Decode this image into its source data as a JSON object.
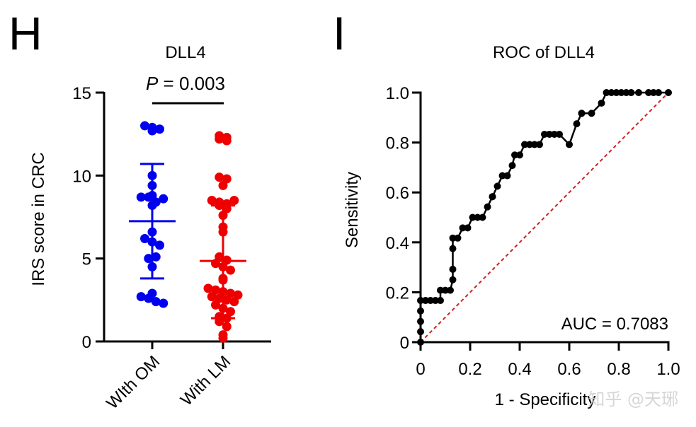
{
  "panels": {
    "left_letter": "H",
    "right_letter": "I"
  },
  "watermark": "知乎 @天琊",
  "chart_data": [
    {
      "type": "scatter",
      "subtype": "dot-plot-with-mean-sd",
      "title": "DLL4",
      "annotation": {
        "p_label": "P",
        "p_text": " = 0.003"
      },
      "xlabel": "",
      "ylabel": "IRS score in CRC",
      "ylim": [
        0,
        15
      ],
      "yticks": [
        "0",
        "5",
        "10",
        "15"
      ],
      "yticks_values": [
        0,
        5,
        10,
        15
      ],
      "categories": [
        "WIth OM",
        "With LM"
      ],
      "grid": false,
      "series": [
        {
          "name": "WIth OM",
          "color": "#0000ee",
          "mean": 7.25,
          "sd_upper": 10.7,
          "sd_lower": 3.8,
          "values": [
            13.0,
            12.7,
            12.9,
            12.8,
            10.0,
            9.4,
            8.8,
            8.7,
            8.7,
            8.4,
            8.6,
            8.2,
            6.6,
            6.2,
            6.0,
            5.8,
            5.0,
            5.1,
            4.5,
            2.9,
            2.7,
            2.6,
            2.4,
            2.3
          ]
        },
        {
          "name": "With LM",
          "color": "#ee0000",
          "mean": 4.85,
          "sd_upper": 8.2,
          "sd_lower": 1.4,
          "values": [
            12.4,
            12.2,
            12.1,
            12.3,
            9.9,
            9.8,
            9.4,
            8.5,
            8.4,
            8.3,
            8.5,
            8.2,
            8.0,
            7.6,
            6.9,
            6.6,
            5.1,
            4.9,
            4.7,
            4.5,
            4.3,
            3.8,
            3.7,
            3.2,
            3.1,
            3.0,
            2.9,
            2.8,
            2.7,
            2.6,
            2.5,
            2.4,
            2.2,
            2.0,
            1.8,
            1.5,
            1.4,
            1.2,
            0.9,
            0.4,
            0.2
          ]
        }
      ]
    },
    {
      "type": "line",
      "subtype": "roc",
      "title": "ROC of DLL4",
      "xlabel": "1 - Specificity",
      "ylabel": "Sensitivity",
      "xlim": [
        0,
        1
      ],
      "ylim": [
        0,
        1
      ],
      "xticks": [
        "0",
        "0.2",
        "0.4",
        "0.6",
        "0.8",
        "1.0"
      ],
      "xticks_values": [
        0,
        0.2,
        0.4,
        0.6,
        0.8,
        1.0
      ],
      "yticks": [
        "0",
        "0.2",
        "0.4",
        "0.6",
        "0.8",
        "1.0"
      ],
      "yticks_values": [
        0,
        0.2,
        0.4,
        0.6,
        0.8,
        1.0
      ],
      "annotation": "AUC = 0.7083",
      "auc": 0.7083,
      "grid": false,
      "line_color": "#000000",
      "reference_line": {
        "color": "#cc2222",
        "style": "dashed",
        "from": [
          0,
          0
        ],
        "to": [
          1,
          1
        ]
      },
      "series": [
        {
          "name": "ROC",
          "x": [
            0,
            0,
            0,
            0,
            0,
            0.02,
            0.04,
            0.06,
            0.08,
            0.08,
            0.1,
            0.12,
            0.13,
            0.13,
            0.13,
            0.13,
            0.15,
            0.17,
            0.19,
            0.21,
            0.23,
            0.25,
            0.27,
            0.29,
            0.29,
            0.31,
            0.33,
            0.35,
            0.37,
            0.38,
            0.4,
            0.42,
            0.44,
            0.46,
            0.48,
            0.5,
            0.52,
            0.54,
            0.56,
            0.6,
            0.63,
            0.65,
            0.65,
            0.69,
            0.73,
            0.75,
            0.77,
            0.79,
            0.81,
            0.83,
            0.85,
            0.88,
            0.92,
            0.94,
            0.96,
            1.0
          ],
          "y": [
            0,
            0.042,
            0.083,
            0.125,
            0.167,
            0.167,
            0.167,
            0.167,
            0.167,
            0.208,
            0.208,
            0.208,
            0.25,
            0.292,
            0.375,
            0.417,
            0.417,
            0.458,
            0.458,
            0.5,
            0.5,
            0.5,
            0.542,
            0.583,
            0.583,
            0.625,
            0.667,
            0.667,
            0.708,
            0.75,
            0.75,
            0.792,
            0.792,
            0.792,
            0.792,
            0.833,
            0.833,
            0.833,
            0.833,
            0.792,
            0.875,
            0.917,
            0.917,
            0.917,
            0.958,
            1.0,
            1.0,
            1.0,
            1.0,
            1.0,
            1.0,
            1.0,
            1.0,
            1.0,
            1.0,
            1.0
          ]
        }
      ]
    }
  ]
}
